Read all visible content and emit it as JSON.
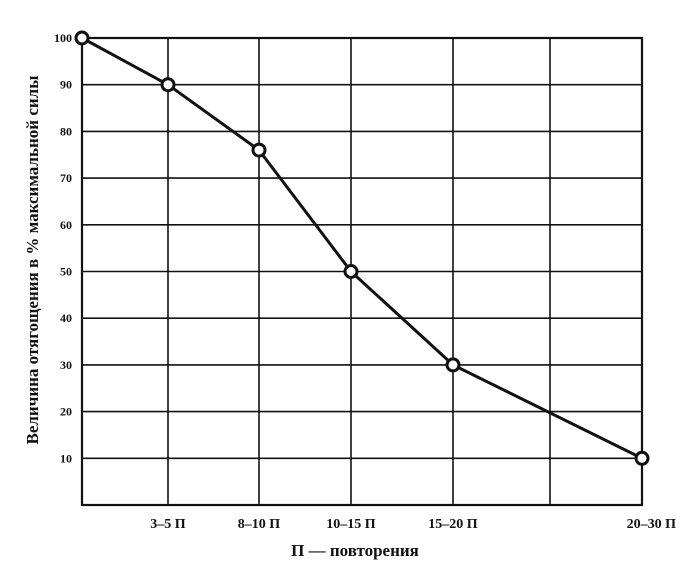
{
  "chart_data": {
    "type": "line",
    "xlabel": "П — повторения",
    "ylabel": "Величина отягощения в % максимальной силы",
    "ylim": [
      0,
      100
    ],
    "yticks": [
      10,
      20,
      30,
      40,
      50,
      60,
      70,
      80,
      90,
      100
    ],
    "x_ticks": [
      {
        "pos": 1,
        "label": "3–5 П"
      },
      {
        "pos": 2,
        "label": "8–10 П"
      },
      {
        "pos": 3,
        "label": "10–15 П"
      },
      {
        "pos": 4,
        "label": "15–20 П"
      },
      {
        "pos": 6,
        "label": "20–30 П"
      }
    ],
    "xlim": [
      0,
      6
    ],
    "grid": true,
    "series": [
      {
        "points": [
          {
            "x": 0,
            "y": 100
          },
          {
            "x": 1,
            "y": 90
          },
          {
            "x": 2,
            "y": 76
          },
          {
            "x": 3,
            "y": 50
          },
          {
            "x": 4,
            "y": 30
          },
          {
            "x": 6,
            "y": 10
          }
        ],
        "color": "#111111"
      }
    ]
  }
}
